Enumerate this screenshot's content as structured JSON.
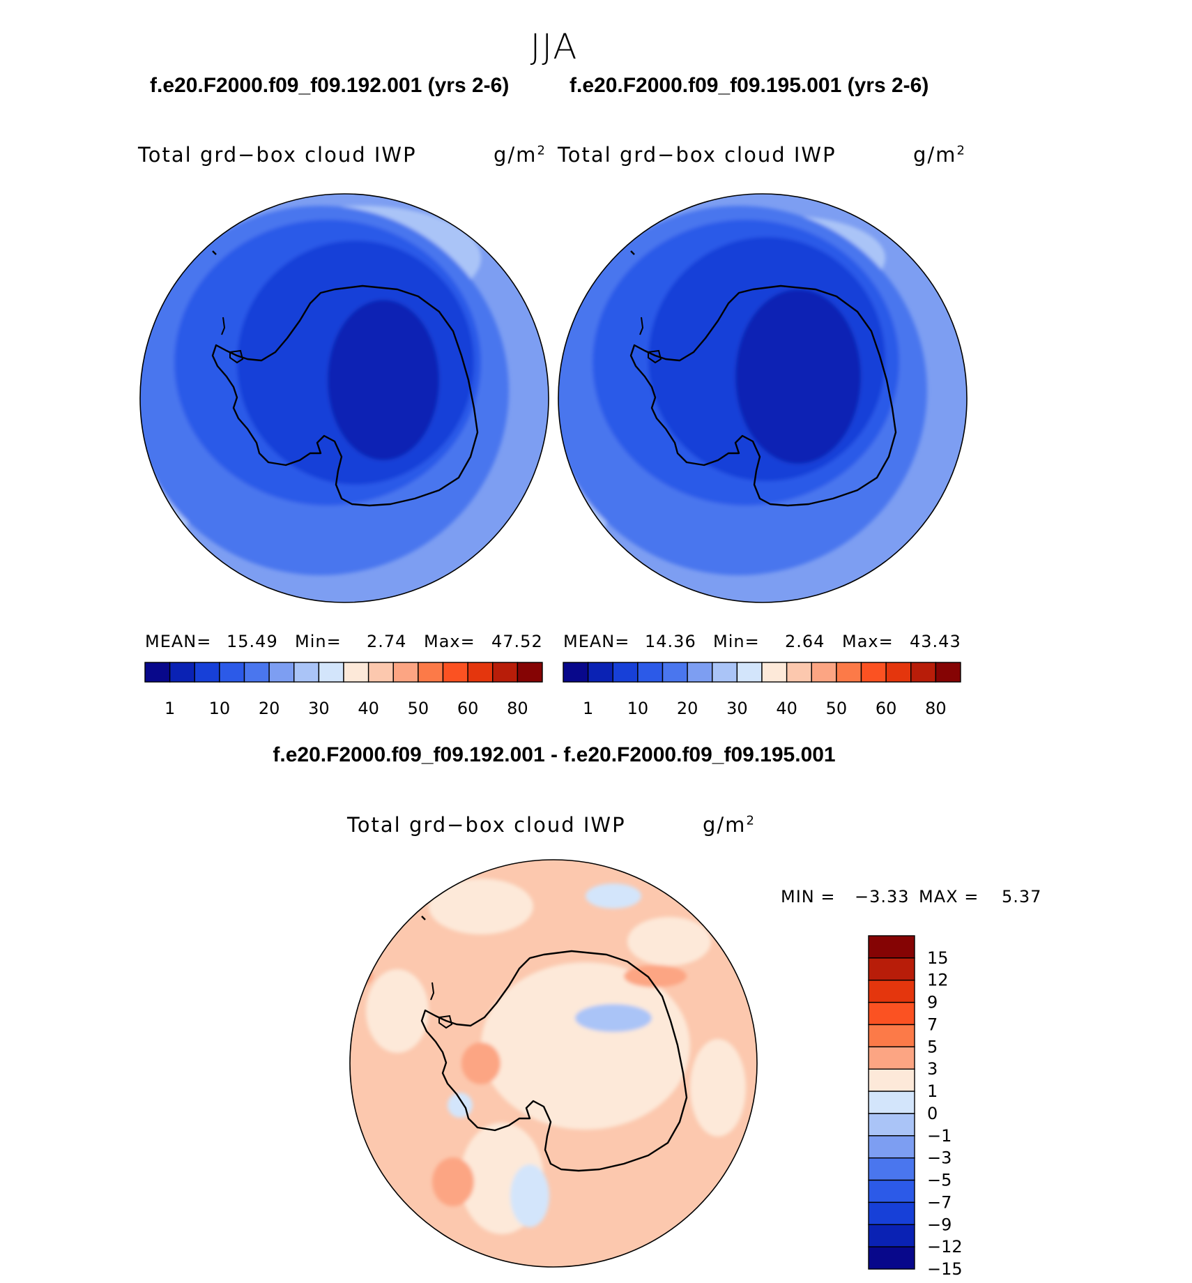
{
  "figure": {
    "season": "JJA",
    "case1_title": "f.e20.F2000.f09_f09.192.001 (yrs 2-6)",
    "case2_title": "f.e20.F2000.f09_f09.195.001 (yrs 2-6)",
    "diff_title": "f.e20.F2000.f09_f09.192.001 - f.e20.F2000.f09_f09.195.001"
  },
  "panels": {
    "left": {
      "var_title": "Total grd−box cloud IWP",
      "units": "g/m",
      "units_exp": "2",
      "mean_label": "MEAN=",
      "mean": "15.49",
      "min_label": "Min=",
      "min": "2.74",
      "max_label": "Max=",
      "max": "47.52"
    },
    "right": {
      "var_title": "Total grd−box cloud IWP",
      "units": "g/m",
      "units_exp": "2",
      "mean_label": "MEAN=",
      "mean": "14.36",
      "min_label": "Min=",
      "min": "2.64",
      "max_label": "Max=",
      "max": "43.43"
    },
    "diff": {
      "var_title": "Total grd−box cloud IWP",
      "units": "g/m",
      "units_exp": "2",
      "min_label": "MIN =",
      "min": "−3.33",
      "max_label": "MAX =",
      "max": "5.37"
    }
  },
  "chart_data": [
    {
      "type": "heatmap",
      "projection": "south polar stereographic",
      "title": "Total grd−box cloud IWP",
      "units": "g/m2",
      "case": "f.e20.F2000.f09_f09.192.001 (yrs 2-6)",
      "mean": 15.49,
      "min": 2.74,
      "max": 47.52,
      "colorbar_ticks": [
        "1",
        "10",
        "20",
        "30",
        "40",
        "50",
        "60",
        "80"
      ],
      "colorbar_colors": [
        "#08088b",
        "#0a22b4",
        "#1740d8",
        "#2c5ae8",
        "#4a76ee",
        "#7d9ef2",
        "#aac4f7",
        "#d3e5fb",
        "#fde9d9",
        "#fcc8ae",
        "#fca583",
        "#fc7a48",
        "#fb5222",
        "#e4360d",
        "#b81d09",
        "#850404"
      ]
    },
    {
      "type": "heatmap",
      "projection": "south polar stereographic",
      "title": "Total grd−box cloud IWP",
      "units": "g/m2",
      "case": "f.e20.F2000.f09_f09.195.001 (yrs 2-6)",
      "mean": 14.36,
      "min": 2.64,
      "max": 43.43,
      "colorbar_ticks": [
        "1",
        "10",
        "20",
        "30",
        "40",
        "50",
        "60",
        "80"
      ],
      "colorbar_colors": [
        "#08088b",
        "#0a22b4",
        "#1740d8",
        "#2c5ae8",
        "#4a76ee",
        "#7d9ef2",
        "#aac4f7",
        "#d3e5fb",
        "#fde9d9",
        "#fcc8ae",
        "#fca583",
        "#fc7a48",
        "#fb5222",
        "#e4360d",
        "#b81d09",
        "#850404"
      ]
    },
    {
      "type": "heatmap",
      "projection": "south polar stereographic",
      "title": "Total grd−box cloud IWP",
      "units": "g/m2",
      "case": "f.e20.F2000.f09_f09.192.001 - f.e20.F2000.f09_f09.195.001",
      "min": -3.33,
      "max": 5.37,
      "colorbar_ticks": [
        "15",
        "12",
        "9",
        "7",
        "5",
        "3",
        "1",
        "0",
        "−1",
        "−3",
        "−5",
        "−7",
        "−9",
        "−12",
        "−15"
      ],
      "colorbar_colors": [
        "#850404",
        "#b81d09",
        "#e4360d",
        "#fb5222",
        "#fc7a48",
        "#fca583",
        "#fde9d9",
        "#d3e5fb",
        "#aac4f7",
        "#7d9ef2",
        "#4a76ee",
        "#2c5ae8",
        "#1740d8",
        "#0a22b4",
        "#08088b"
      ]
    }
  ]
}
